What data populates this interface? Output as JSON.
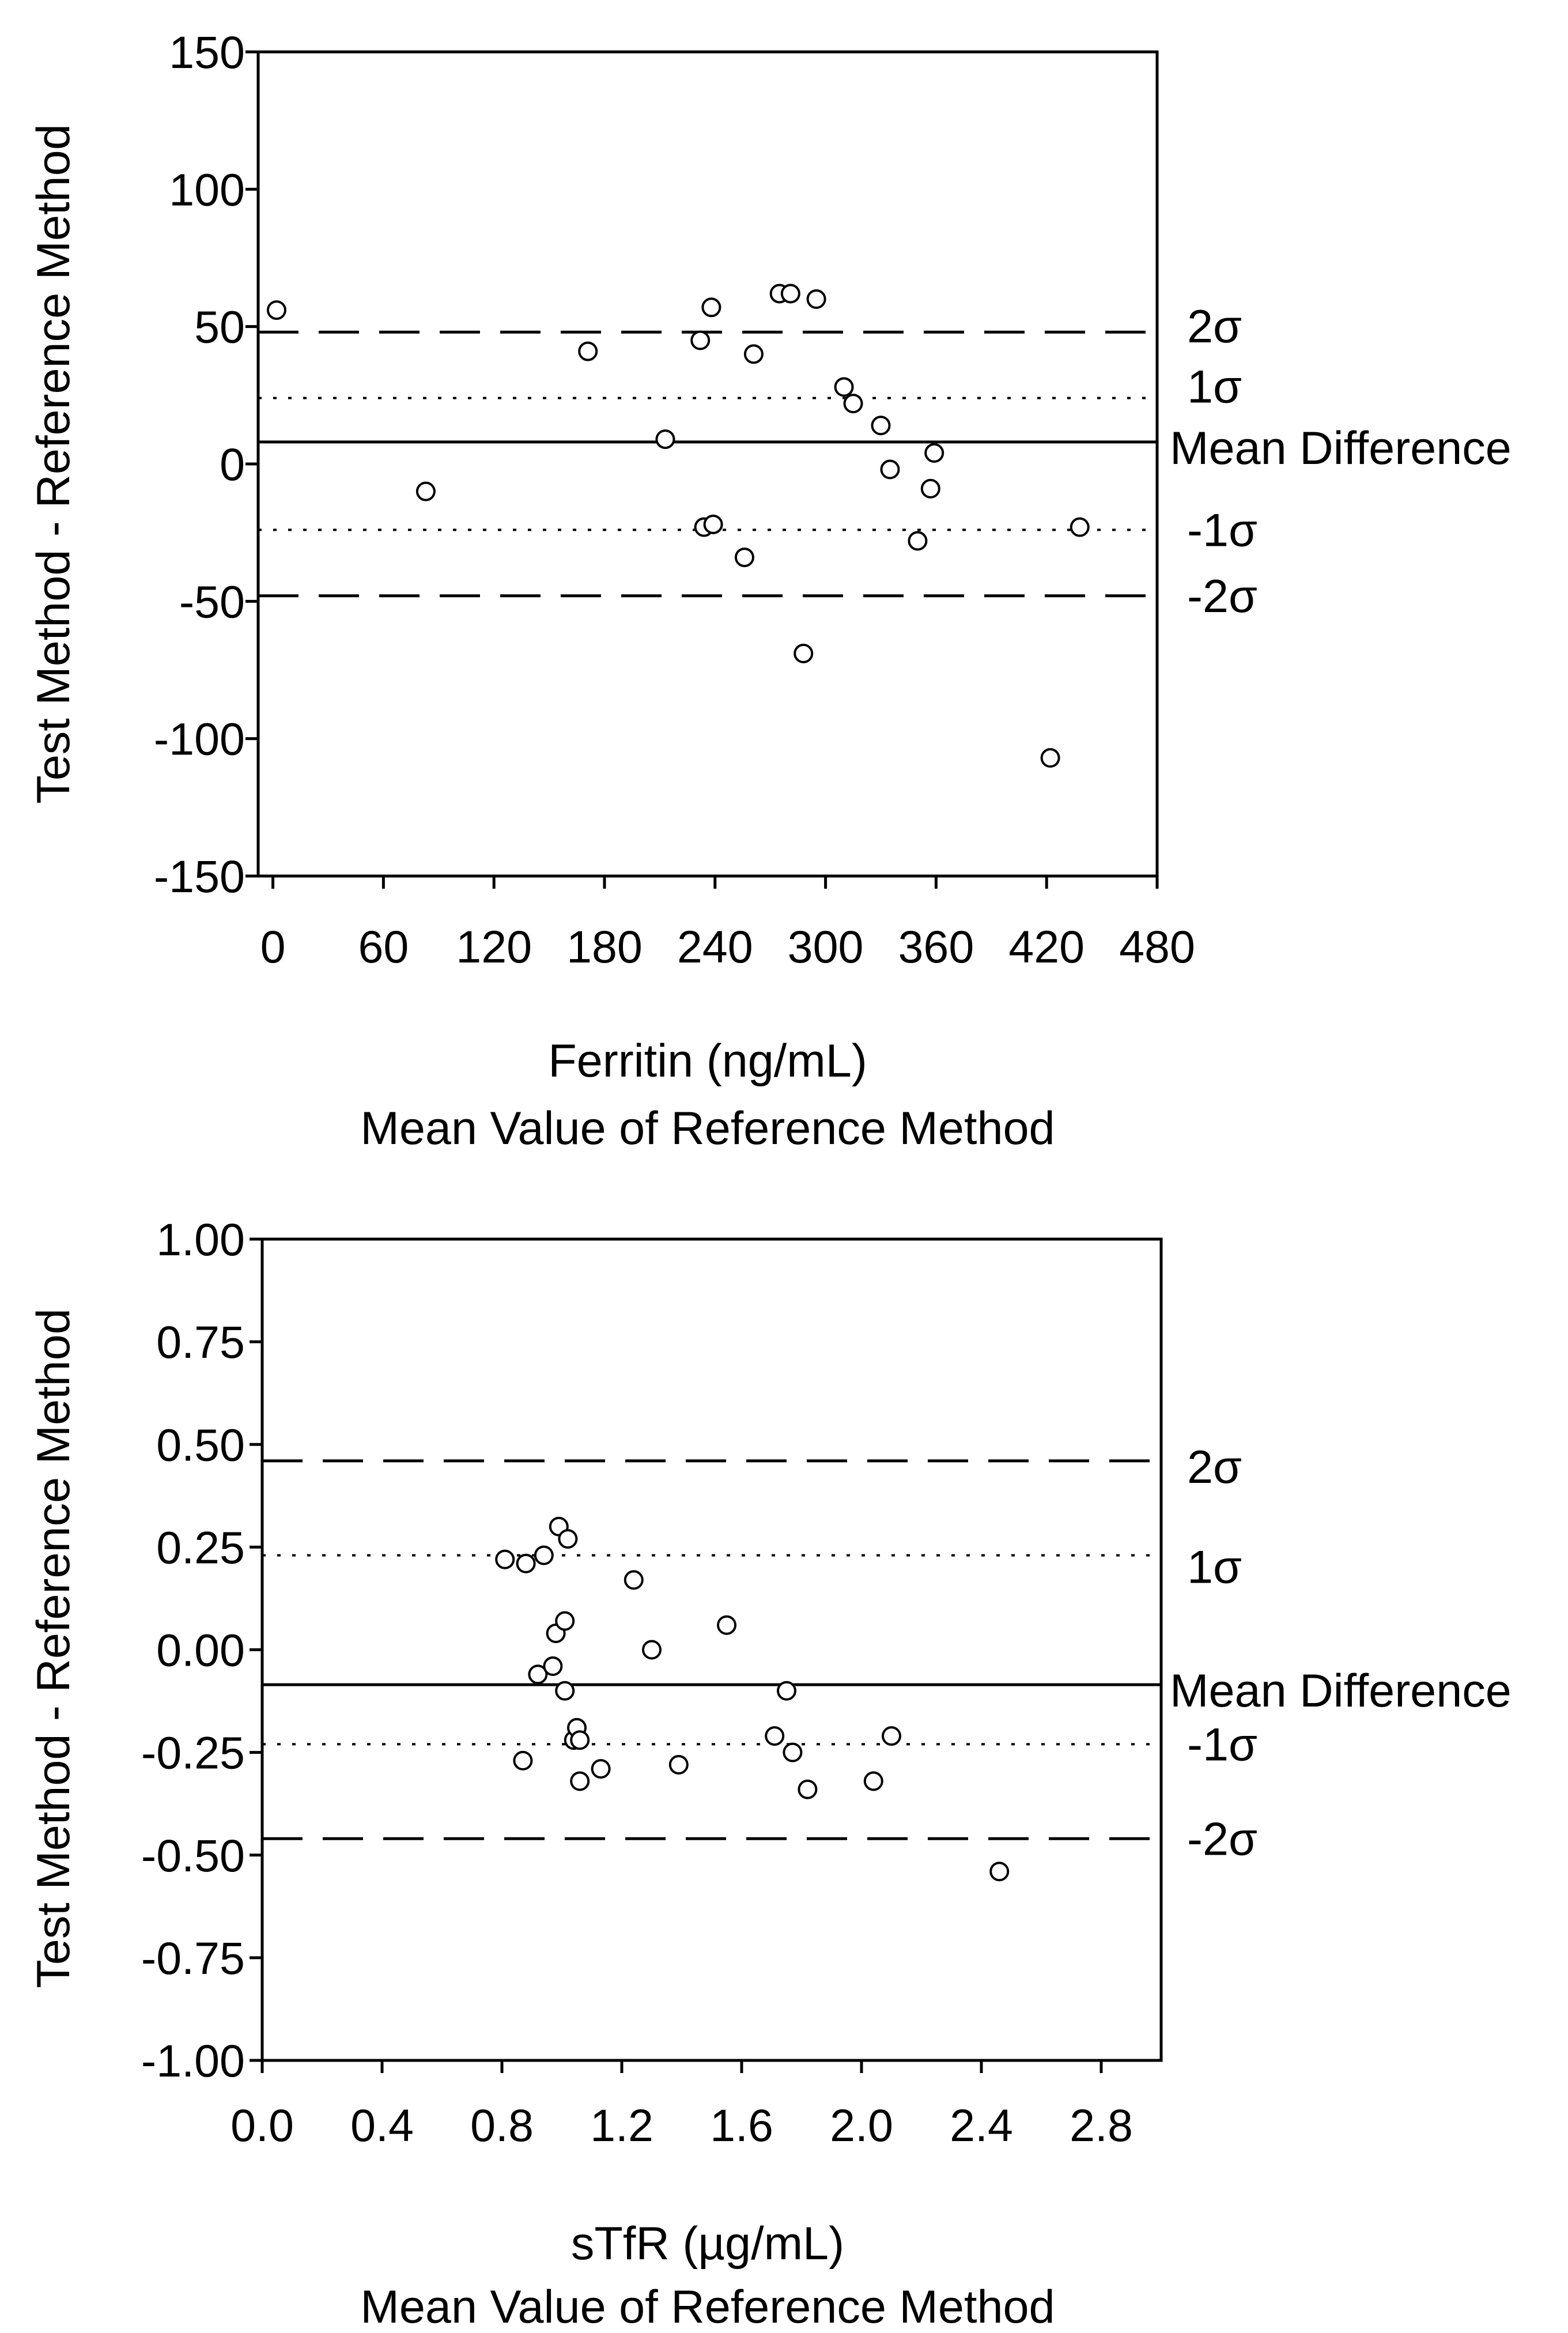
{
  "chart_data": [
    {
      "type": "scatter",
      "subtype": "bland-altman",
      "title": "",
      "ylabel": "Test Method - Reference Method",
      "xlabel_lines": [
        "Ferritin (ng/mL)",
        "Mean Value of Reference Method"
      ],
      "xlim": [
        -8,
        480
      ],
      "ylim": [
        -150,
        150
      ],
      "xticks": [
        0,
        60,
        120,
        180,
        240,
        300,
        360,
        420,
        480
      ],
      "xtick_labels": [
        "0",
        "60",
        "120",
        "180",
        "240",
        "300",
        "360",
        "420",
        "480"
      ],
      "yticks": [
        150,
        100,
        50,
        0,
        -50,
        -100,
        -150
      ],
      "ytick_labels": [
        "150",
        "100",
        "50",
        "0",
        "-50",
        "-100",
        "-150"
      ],
      "grid": false,
      "reference_lines": [
        {
          "label": "2σ",
          "value": 48,
          "style": "dashed"
        },
        {
          "label": "1σ",
          "value": 24,
          "style": "dotted"
        },
        {
          "label": "Mean Difference",
          "value": 8,
          "style": "solid"
        },
        {
          "label": "-1σ",
          "value": -24,
          "style": "dotted"
        },
        {
          "label": "-2σ",
          "value": -48,
          "style": "dashed"
        }
      ],
      "points": [
        [
          2,
          56
        ],
        [
          83,
          -10
        ],
        [
          171,
          41
        ],
        [
          213,
          9
        ],
        [
          232,
          45
        ],
        [
          234,
          -23
        ],
        [
          238,
          57
        ],
        [
          239,
          -22
        ],
        [
          256,
          -34
        ],
        [
          261,
          40
        ],
        [
          275,
          62
        ],
        [
          281,
          62
        ],
        [
          288,
          -69
        ],
        [
          295,
          60
        ],
        [
          310,
          28
        ],
        [
          315,
          22
        ],
        [
          330,
          14
        ],
        [
          335,
          -2
        ],
        [
          350,
          -28
        ],
        [
          357,
          -9
        ],
        [
          359,
          4
        ],
        [
          422,
          -107
        ],
        [
          438,
          -23
        ]
      ]
    },
    {
      "type": "scatter",
      "subtype": "bland-altman",
      "title": "",
      "ylabel": "Test Method - Reference Method",
      "xlabel_lines": [
        "sTfR (µg/mL)",
        "Mean Value of Reference Method"
      ],
      "xlim": [
        0,
        3.0
      ],
      "ylim": [
        -1.0,
        1.0
      ],
      "xticks": [
        0.0,
        0.4,
        0.8,
        1.2,
        1.6,
        2.0,
        2.4,
        2.8
      ],
      "xtick_labels": [
        "0.0",
        "0.4",
        "0.8",
        "1.2",
        "1.6",
        "2.0",
        "2.4",
        "2.8"
      ],
      "yticks": [
        1.0,
        0.75,
        0.5,
        0.25,
        0.0,
        -0.25,
        -0.5,
        -0.75,
        -1.0
      ],
      "ytick_labels": [
        "1.00",
        "0.75",
        "0.50",
        "0.25",
        "0.00",
        "-0.25",
        "-0.50",
        "-0.75",
        "-1.00"
      ],
      "grid": false,
      "reference_lines": [
        {
          "label": "2σ",
          "value": 0.46,
          "style": "dashed"
        },
        {
          "label": "1σ",
          "value": 0.23,
          "style": "dotted"
        },
        {
          "label": "Mean Difference",
          "value": -0.085,
          "style": "solid"
        },
        {
          "label": "-1σ",
          "value": -0.23,
          "style": "dotted"
        },
        {
          "label": "-2σ",
          "value": -0.46,
          "style": "dashed"
        }
      ],
      "points": [
        [
          0.81,
          0.22
        ],
        [
          0.87,
          -0.27
        ],
        [
          0.88,
          0.21
        ],
        [
          0.92,
          -0.06
        ],
        [
          0.94,
          0.23
        ],
        [
          0.97,
          -0.04
        ],
        [
          0.98,
          0.04
        ],
        [
          0.99,
          0.3
        ],
        [
          1.01,
          -0.1
        ],
        [
          1.01,
          0.07
        ],
        [
          1.02,
          0.27
        ],
        [
          1.04,
          -0.22
        ],
        [
          1.05,
          -0.19
        ],
        [
          1.06,
          -0.22
        ],
        [
          1.06,
          -0.32
        ],
        [
          1.13,
          -0.29
        ],
        [
          1.24,
          0.17
        ],
        [
          1.3,
          0.0
        ],
        [
          1.39,
          -0.28
        ],
        [
          1.55,
          0.06
        ],
        [
          1.71,
          -0.21
        ],
        [
          1.75,
          -0.1
        ],
        [
          1.77,
          -0.25
        ],
        [
          1.82,
          -0.34
        ],
        [
          2.04,
          -0.32
        ],
        [
          2.1,
          -0.21
        ],
        [
          2.46,
          -0.54
        ]
      ]
    }
  ]
}
